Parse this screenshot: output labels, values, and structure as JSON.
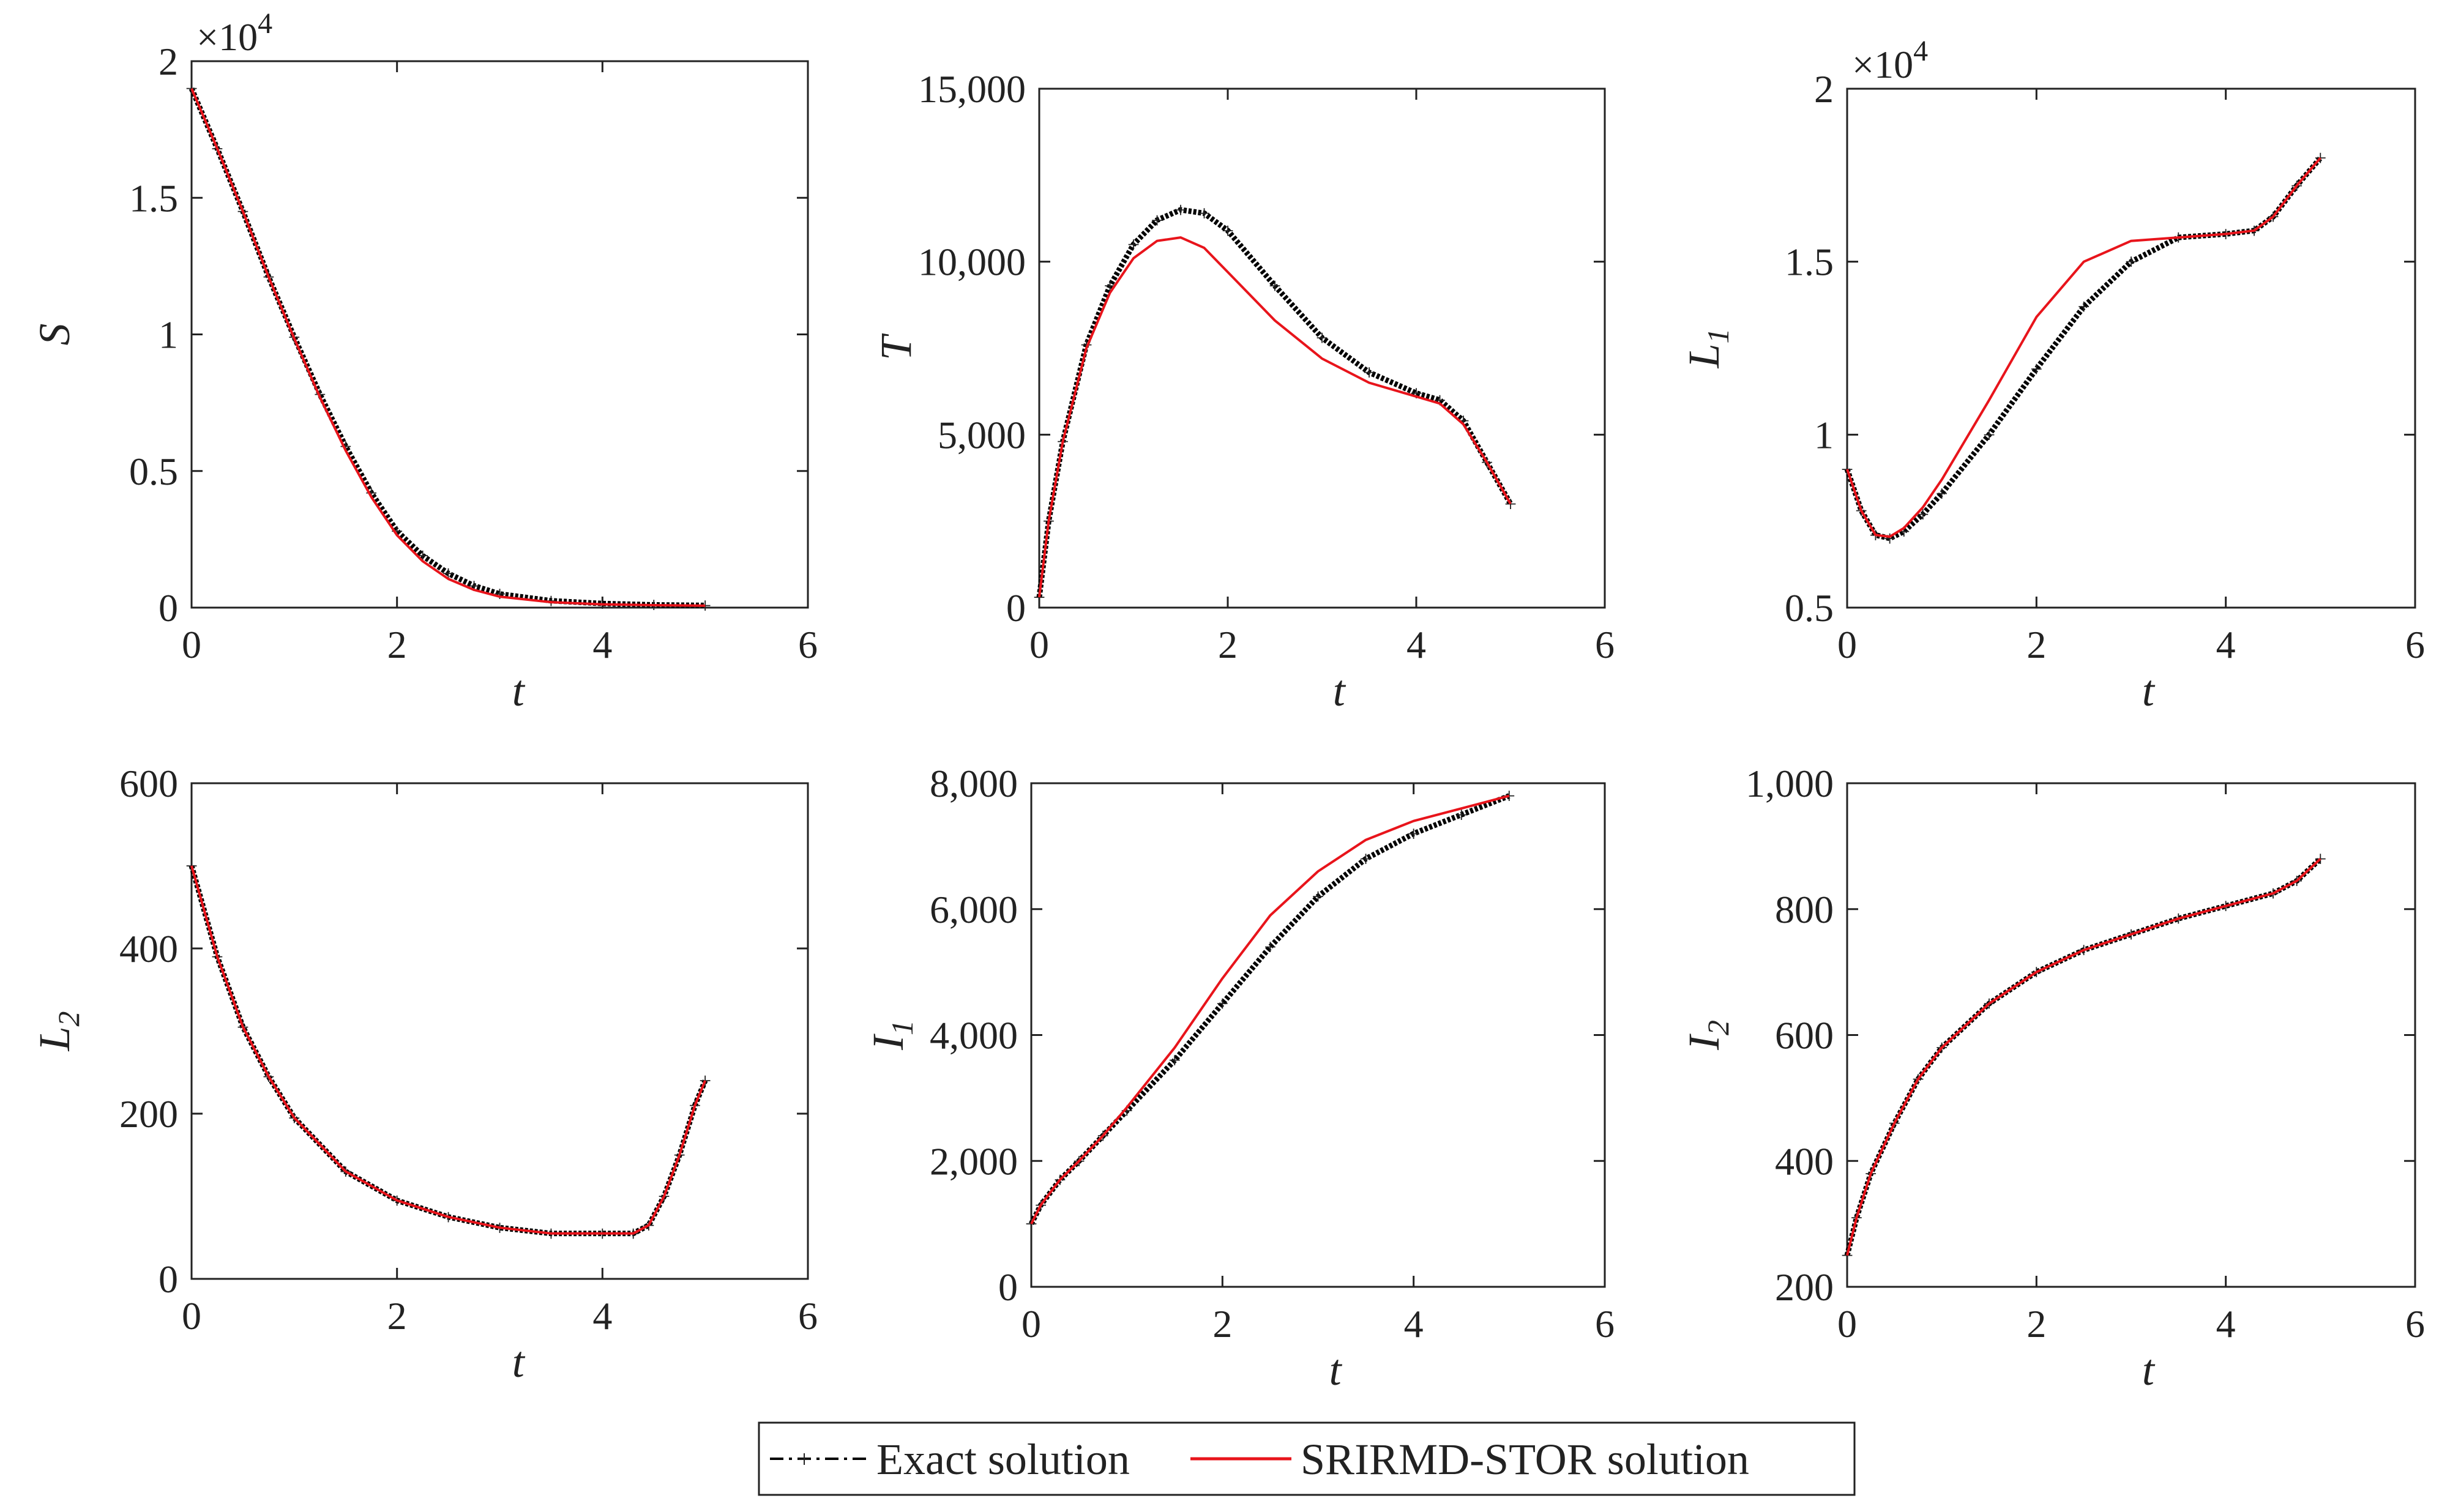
{
  "figure": {
    "legend_position": "bottom-center"
  },
  "legend": [
    {
      "key": "exact",
      "label": "Exact solution",
      "color": "#000000",
      "style": "dash-dot-marker"
    },
    {
      "key": "srirmd",
      "label": "SRIRMD-STOR solution",
      "color": "#e8141b",
      "style": "solid"
    }
  ],
  "chart_data": [
    {
      "type": "line",
      "ylabel": "S",
      "ylabel_sub": "",
      "xlabel": "t",
      "xlim": [
        0,
        6
      ],
      "ylim": [
        0,
        20000
      ],
      "xticks": [
        "0",
        "2",
        "4",
        "6"
      ],
      "xtick_values": [
        0,
        2,
        4,
        6
      ],
      "yticks": [
        "0",
        "0.5",
        "1",
        "1.5",
        "2"
      ],
      "ytick_values": [
        0,
        5000,
        10000,
        15000,
        20000
      ],
      "exponent_label": "×10",
      "exponent_power": "4",
      "x": [
        0,
        0.25,
        0.5,
        0.75,
        1,
        1.25,
        1.5,
        1.75,
        2,
        2.25,
        2.5,
        2.75,
        3,
        3.5,
        4,
        4.5,
        5
      ],
      "series": [
        {
          "name": "Exact solution",
          "values": [
            19000,
            16800,
            14500,
            12100,
            9900,
            7800,
            5900,
            4200,
            2800,
            1900,
            1250,
            800,
            500,
            250,
            150,
            100,
            80
          ]
        },
        {
          "name": "SRIRMD-STOR solution",
          "values": [
            19000,
            16800,
            14500,
            12100,
            9850,
            7700,
            5750,
            4050,
            2650,
            1700,
            1050,
            650,
            400,
            200,
            120,
            90,
            70
          ]
        }
      ]
    },
    {
      "type": "line",
      "ylabel": "T",
      "ylabel_sub": "",
      "xlabel": "t",
      "xlim": [
        0,
        6
      ],
      "ylim": [
        0,
        15000
      ],
      "xticks": [
        "0",
        "2",
        "4",
        "6"
      ],
      "xtick_values": [
        0,
        2,
        4,
        6
      ],
      "yticks": [
        "0",
        "5,000",
        "10,000",
        "15,000"
      ],
      "ytick_values": [
        0,
        5000,
        10000,
        15000
      ],
      "exponent_label": "",
      "exponent_power": "",
      "x": [
        0,
        0.1,
        0.25,
        0.5,
        0.75,
        1,
        1.25,
        1.5,
        1.75,
        2,
        2.5,
        3,
        3.5,
        4,
        4.25,
        4.5,
        4.75,
        5
      ],
      "series": [
        {
          "name": "Exact solution",
          "values": [
            300,
            2500,
            4800,
            7600,
            9300,
            10500,
            11200,
            11500,
            11400,
            10900,
            9300,
            7800,
            6800,
            6200,
            6000,
            5400,
            4200,
            3000
          ]
        },
        {
          "name": "SRIRMD-STOR solution",
          "values": [
            300,
            2500,
            4800,
            7500,
            9100,
            10100,
            10600,
            10700,
            10400,
            9700,
            8300,
            7200,
            6500,
            6100,
            5900,
            5300,
            4200,
            3000
          ]
        }
      ]
    },
    {
      "type": "line",
      "ylabel": "L",
      "ylabel_sub": "1",
      "xlabel": "t",
      "xlim": [
        0,
        6
      ],
      "ylim": [
        5000,
        20000
      ],
      "xticks": [
        "0",
        "2",
        "4",
        "6"
      ],
      "xtick_values": [
        0,
        2,
        4,
        6
      ],
      "yticks": [
        "0.5",
        "1",
        "1.5",
        "2"
      ],
      "ytick_values": [
        5000,
        10000,
        15000,
        20000
      ],
      "exponent_label": "×10",
      "exponent_power": "4",
      "x": [
        0,
        0.15,
        0.3,
        0.45,
        0.6,
        0.8,
        1,
        1.5,
        2,
        2.5,
        3,
        3.5,
        4,
        4.3,
        4.5,
        4.75,
        5
      ],
      "series": [
        {
          "name": "Exact solution",
          "values": [
            9000,
            7800,
            7100,
            7000,
            7200,
            7700,
            8300,
            10000,
            11900,
            13700,
            15000,
            15700,
            15800,
            15900,
            16300,
            17200,
            18000
          ]
        },
        {
          "name": "SRIRMD-STOR solution",
          "values": [
            9000,
            7800,
            7100,
            7050,
            7300,
            7900,
            8700,
            11000,
            13400,
            15000,
            15600,
            15700,
            15800,
            15900,
            16300,
            17200,
            18000
          ]
        }
      ]
    },
    {
      "type": "line",
      "ylabel": "L",
      "ylabel_sub": "2",
      "xlabel": "t",
      "xlim": [
        0,
        6
      ],
      "ylim": [
        0,
        600
      ],
      "xticks": [
        "0",
        "2",
        "4",
        "6"
      ],
      "xtick_values": [
        0,
        2,
        4,
        6
      ],
      "yticks": [
        "0",
        "200",
        "400",
        "600"
      ],
      "ytick_values": [
        0,
        200,
        400,
        600
      ],
      "exponent_label": "",
      "exponent_power": "",
      "x": [
        0,
        0.25,
        0.5,
        0.75,
        1,
        1.5,
        2,
        2.5,
        3,
        3.5,
        4,
        4.3,
        4.45,
        4.6,
        4.75,
        4.9,
        5
      ],
      "series": [
        {
          "name": "Exact solution",
          "values": [
            500,
            390,
            305,
            245,
            195,
            130,
            95,
            75,
            62,
            55,
            55,
            55,
            65,
            100,
            150,
            210,
            240
          ]
        },
        {
          "name": "SRIRMD-STOR solution",
          "values": [
            500,
            390,
            305,
            245,
            195,
            130,
            95,
            75,
            62,
            55,
            55,
            55,
            65,
            100,
            150,
            210,
            240
          ]
        }
      ]
    },
    {
      "type": "line",
      "ylabel": "I",
      "ylabel_sub": "1",
      "xlabel": "t",
      "xlim": [
        0,
        6
      ],
      "ylim": [
        0,
        8000
      ],
      "xticks": [
        "0",
        "2",
        "4",
        "6"
      ],
      "xtick_values": [
        0,
        2,
        4,
        6
      ],
      "yticks": [
        "0",
        "2,000",
        "4,000",
        "6,000",
        "8,000"
      ],
      "ytick_values": [
        0,
        2000,
        4000,
        6000,
        8000
      ],
      "exponent_label": "",
      "exponent_power": "",
      "x": [
        0,
        0.1,
        0.3,
        0.5,
        0.75,
        1,
        1.5,
        2,
        2.5,
        3,
        3.5,
        4,
        4.5,
        5
      ],
      "series": [
        {
          "name": "Exact solution",
          "values": [
            1000,
            1300,
            1700,
            2000,
            2400,
            2800,
            3600,
            4500,
            5400,
            6200,
            6800,
            7200,
            7500,
            7800
          ]
        },
        {
          "name": "SRIRMD-STOR solution",
          "values": [
            1000,
            1300,
            1700,
            2000,
            2400,
            2850,
            3800,
            4900,
            5900,
            6600,
            7100,
            7400,
            7600,
            7800
          ]
        }
      ]
    },
    {
      "type": "line",
      "ylabel": "I",
      "ylabel_sub": "2",
      "xlabel": "t",
      "xlim": [
        0,
        6
      ],
      "ylim": [
        200,
        1000
      ],
      "xticks": [
        "0",
        "2",
        "4",
        "6"
      ],
      "xtick_values": [
        0,
        2,
        4,
        6
      ],
      "yticks": [
        "200",
        "400",
        "600",
        "800",
        "1,000"
      ],
      "ytick_values": [
        200,
        400,
        600,
        800,
        1000
      ],
      "exponent_label": "",
      "exponent_power": "",
      "x": [
        0,
        0.1,
        0.25,
        0.5,
        0.75,
        1,
        1.5,
        2,
        2.5,
        3,
        3.5,
        4,
        4.5,
        4.75,
        5
      ],
      "series": [
        {
          "name": "Exact solution",
          "values": [
            250,
            310,
            380,
            460,
            530,
            580,
            650,
            700,
            735,
            760,
            785,
            805,
            825,
            845,
            880
          ]
        },
        {
          "name": "SRIRMD-STOR solution",
          "values": [
            250,
            310,
            380,
            460,
            530,
            580,
            650,
            700,
            735,
            760,
            785,
            805,
            825,
            845,
            880
          ]
        }
      ]
    }
  ]
}
